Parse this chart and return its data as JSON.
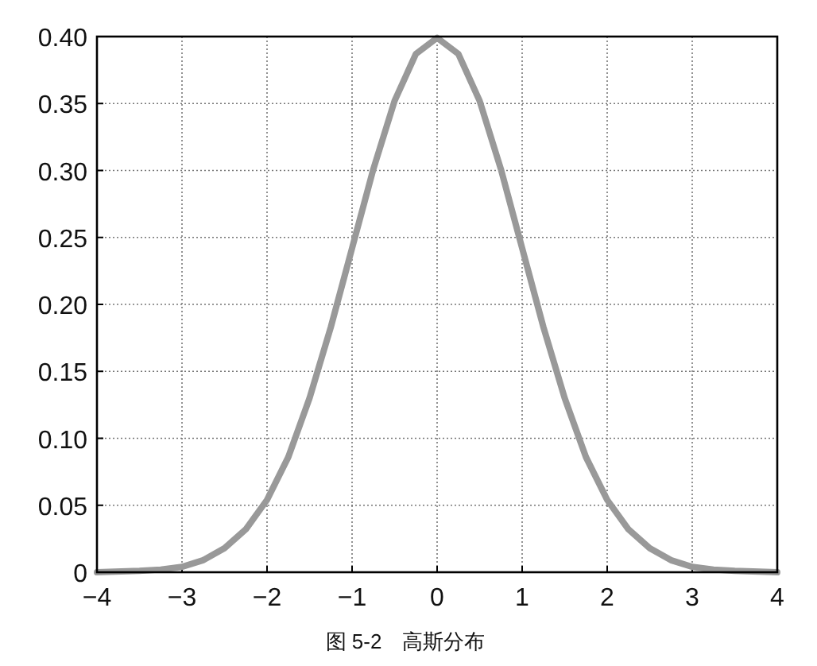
{
  "chart_data": {
    "type": "line",
    "annotations": [
      "图 5-2　高斯分布"
    ],
    "x": [
      -4,
      -3.5,
      -3.25,
      -3,
      -2.75,
      -2.5,
      -2.25,
      -2,
      -1.75,
      -1.5,
      -1.25,
      -1,
      -0.75,
      -0.5,
      -0.25,
      0,
      0.25,
      0.5,
      0.75,
      1,
      1.25,
      1.5,
      1.75,
      2,
      2.25,
      2.5,
      2.75,
      3,
      3.25,
      3.5,
      4
    ],
    "series": [
      {
        "color": "#999999",
        "values": [
          0.0,
          0.001,
          0.002,
          0.004,
          0.009,
          0.018,
          0.032,
          0.054,
          0.086,
          0.13,
          0.183,
          0.242,
          0.301,
          0.352,
          0.387,
          0.399,
          0.387,
          0.352,
          0.301,
          0.242,
          0.183,
          0.13,
          0.086,
          0.054,
          0.032,
          0.018,
          0.009,
          0.004,
          0.002,
          0.001,
          0.0
        ]
      }
    ],
    "xlim": [
      -4,
      4
    ],
    "ylim": [
      0,
      0.4
    ],
    "xticks": [
      {
        "value": -4,
        "label": "−4"
      },
      {
        "value": -3,
        "label": "−3"
      },
      {
        "value": -2,
        "label": "−2"
      },
      {
        "value": -1,
        "label": "−1"
      },
      0,
      1,
      2,
      3,
      4
    ],
    "yticks": [
      0,
      {
        "value": 0.05,
        "label": "0.05"
      },
      {
        "value": 0.1,
        "label": "0.10"
      },
      {
        "value": 0.15,
        "label": "0.15"
      },
      {
        "value": 0.2,
        "label": "0.20"
      },
      {
        "value": 0.25,
        "label": "0.25"
      },
      {
        "value": 0.3,
        "label": "0.30"
      },
      {
        "value": 0.35,
        "label": "0.35"
      },
      {
        "value": 0.4,
        "label": "0.40"
      }
    ],
    "grid": true,
    "marker": "none",
    "line_style": "solid"
  }
}
